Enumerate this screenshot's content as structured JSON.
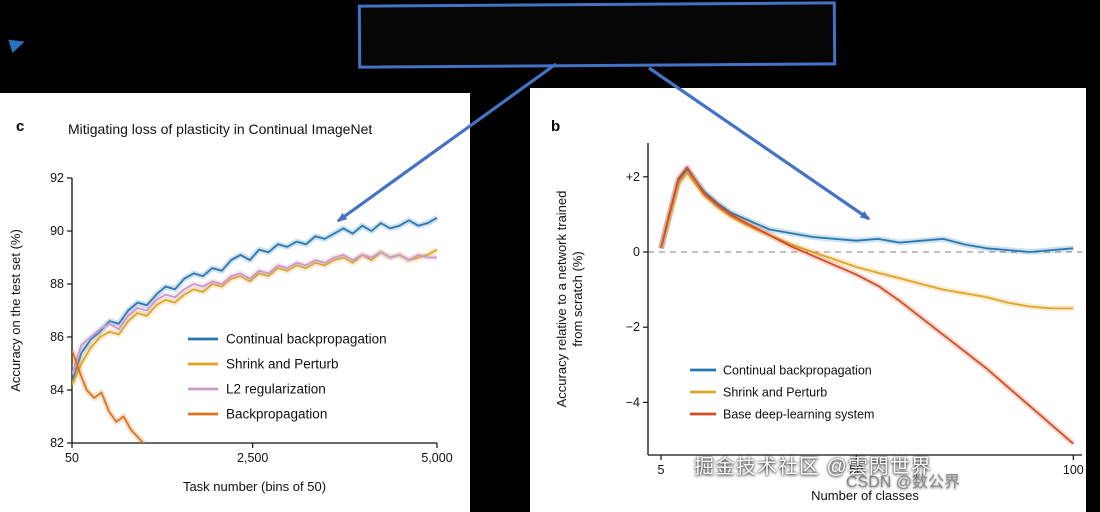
{
  "page": {
    "background": "#000000"
  },
  "callout": {
    "border_color": "#4472c4",
    "arrow_color": "#4472c4"
  },
  "watermarks": {
    "primary": "掘金技术社区 @雲閃世界",
    "secondary": "CSDN @数公界"
  },
  "chart_data": [
    {
      "id": "continual-imagenet",
      "type": "line",
      "panel_label": "c",
      "title": "Mitigating loss of plasticity in Continual ImageNet",
      "xlabel": "Task number (bins of 50)",
      "ylabel": "Accuracy on the test set (%)",
      "ylabel_lines": [
        "Accuracy on the test set (%)"
      ],
      "xlim": [
        50,
        5000
      ],
      "ylim": [
        82,
        92
      ],
      "grid": false,
      "zero_line": false,
      "legend_position": "inside-right-middle",
      "xticks": [
        {
          "v": 50,
          "label": "50"
        },
        {
          "v": 2500,
          "label": "2,500"
        },
        {
          "v": 5000,
          "label": "5,000"
        }
      ],
      "yticks": [
        {
          "v": 82,
          "label": "82"
        },
        {
          "v": 84,
          "label": "84"
        },
        {
          "v": 86,
          "label": "86"
        },
        {
          "v": 88,
          "label": "88"
        },
        {
          "v": 90,
          "label": "90"
        },
        {
          "v": 92,
          "label": "92"
        }
      ],
      "series": [
        {
          "name": "Continual backpropagation",
          "color": "#2878b0",
          "x": [
            50,
            177,
            304,
            431,
            558,
            685,
            812,
            939,
            1066,
            1193,
            1319,
            1446,
            1573,
            1700,
            1827,
            1954,
            2081,
            2208,
            2335,
            2462,
            2588,
            2715,
            2842,
            2969,
            3096,
            3223,
            3350,
            3477,
            3604,
            3731,
            3858,
            3985,
            4112,
            4238,
            4365,
            4492,
            4619,
            4746,
            4873,
            5000
          ],
          "y": [
            84.3,
            85.4,
            85.9,
            86.2,
            86.6,
            86.5,
            87.0,
            87.3,
            87.2,
            87.6,
            87.9,
            87.8,
            88.2,
            88.4,
            88.3,
            88.6,
            88.5,
            88.9,
            89.1,
            88.9,
            89.3,
            89.2,
            89.5,
            89.4,
            89.6,
            89.5,
            89.8,
            89.7,
            89.9,
            90.1,
            89.9,
            90.2,
            90.0,
            90.3,
            90.1,
            90.2,
            90.4,
            90.2,
            90.3,
            90.5
          ]
        },
        {
          "name": "Shrink and Perturb",
          "color": "#dfa524",
          "x": [
            50,
            177,
            304,
            431,
            558,
            685,
            812,
            939,
            1066,
            1193,
            1319,
            1446,
            1573,
            1700,
            1827,
            1954,
            2081,
            2208,
            2335,
            2462,
            2588,
            2715,
            2842,
            2969,
            3096,
            3223,
            3350,
            3477,
            3604,
            3731,
            3858,
            3985,
            4112,
            4238,
            4365,
            4492,
            4619,
            4746,
            4873,
            5000
          ],
          "y": [
            84.2,
            85.0,
            85.6,
            86.0,
            86.2,
            86.1,
            86.6,
            86.9,
            86.8,
            87.2,
            87.4,
            87.3,
            87.6,
            87.8,
            87.7,
            88.0,
            87.9,
            88.2,
            88.3,
            88.1,
            88.4,
            88.3,
            88.6,
            88.5,
            88.7,
            88.6,
            88.8,
            88.7,
            88.9,
            89.0,
            88.8,
            89.1,
            88.9,
            89.2,
            89.0,
            89.1,
            88.9,
            89.0,
            89.1,
            89.3
          ]
        },
        {
          "name": "L2 regularization",
          "color": "#c79bc7",
          "x": [
            50,
            177,
            304,
            431,
            558,
            685,
            812,
            939,
            1066,
            1193,
            1319,
            1446,
            1573,
            1700,
            1827,
            1954,
            2081,
            2208,
            2335,
            2462,
            2588,
            2715,
            2842,
            2969,
            3096,
            3223,
            3350,
            3477,
            3604,
            3731,
            3858,
            3985,
            4112,
            4238,
            4365,
            4492,
            4619,
            4746,
            4873,
            5000
          ],
          "y": [
            84.6,
            85.7,
            86.0,
            86.3,
            86.5,
            86.3,
            86.8,
            87.1,
            87.0,
            87.4,
            87.6,
            87.5,
            87.8,
            88.0,
            87.9,
            88.1,
            88.0,
            88.3,
            88.4,
            88.2,
            88.5,
            88.4,
            88.7,
            88.6,
            88.8,
            88.7,
            88.9,
            88.8,
            89.0,
            89.1,
            88.9,
            89.1,
            89.0,
            89.2,
            89.0,
            89.1,
            88.9,
            89.1,
            89.0,
            89.0
          ]
        },
        {
          "name": "Backpropagation",
          "color": "#dd7320",
          "x": [
            50,
            150,
            250,
            350,
            450,
            550,
            650,
            750,
            850,
            950,
            1050
          ],
          "y": [
            85.5,
            84.7,
            84.0,
            83.7,
            83.9,
            83.2,
            82.8,
            83.0,
            82.5,
            82.2,
            81.9
          ]
        }
      ]
    },
    {
      "id": "relative-accuracy",
      "type": "line",
      "panel_label": "b",
      "title": "",
      "xlabel": "Number of classes",
      "ylabel": "Accuracy relative to a network trained from scratch (%)",
      "ylabel_lines": [
        "Accuracy relative to a network trained",
        "from scratch (%)"
      ],
      "xlim": [
        2,
        102
      ],
      "ylim": [
        -5.4,
        2.9
      ],
      "grid": false,
      "zero_line": true,
      "legend_position": "inside-left-bottom",
      "xticks": [
        {
          "v": 5,
          "label": "5"
        },
        {
          "v": 50,
          "label": "50"
        },
        {
          "v": 100,
          "label": "100"
        }
      ],
      "yticks": [
        {
          "v": 2,
          "label": "+2"
        },
        {
          "v": 0,
          "label": "0"
        },
        {
          "v": -2,
          "label": "−2"
        },
        {
          "v": -4,
          "label": "−4"
        }
      ],
      "series": [
        {
          "name": "Continual backpropagation",
          "color": "#2878b0",
          "x": [
            5,
            7,
            9,
            11,
            13,
            15,
            18,
            21,
            25,
            30,
            35,
            40,
            45,
            50,
            55,
            60,
            65,
            70,
            75,
            80,
            85,
            90,
            95,
            100
          ],
          "y": [
            0.1,
            1.0,
            1.9,
            2.2,
            1.9,
            1.6,
            1.3,
            1.05,
            0.85,
            0.6,
            0.5,
            0.4,
            0.35,
            0.3,
            0.35,
            0.25,
            0.3,
            0.35,
            0.2,
            0.1,
            0.05,
            0.0,
            0.05,
            0.1
          ]
        },
        {
          "name": "Shrink and Perturb",
          "color": "#dfa524",
          "x": [
            5,
            7,
            9,
            11,
            13,
            15,
            18,
            21,
            25,
            30,
            35,
            40,
            45,
            50,
            55,
            60,
            65,
            70,
            75,
            80,
            85,
            90,
            95,
            100
          ],
          "y": [
            0.1,
            0.95,
            1.8,
            2.1,
            1.8,
            1.5,
            1.2,
            0.95,
            0.7,
            0.45,
            0.2,
            0.0,
            -0.2,
            -0.4,
            -0.55,
            -0.7,
            -0.85,
            -1.0,
            -1.1,
            -1.2,
            -1.35,
            -1.45,
            -1.5,
            -1.5
          ]
        },
        {
          "name": "Base deep-learning system",
          "color": "#d14e27",
          "x": [
            5,
            7,
            9,
            11,
            13,
            15,
            18,
            21,
            25,
            30,
            35,
            40,
            45,
            50,
            55,
            60,
            65,
            70,
            75,
            80,
            85,
            90,
            95,
            100
          ],
          "y": [
            0.1,
            1.05,
            1.95,
            2.25,
            1.9,
            1.55,
            1.25,
            1.0,
            0.75,
            0.45,
            0.15,
            -0.1,
            -0.35,
            -0.6,
            -0.9,
            -1.3,
            -1.75,
            -2.2,
            -2.65,
            -3.1,
            -3.6,
            -4.1,
            -4.6,
            -5.1
          ]
        }
      ]
    }
  ]
}
